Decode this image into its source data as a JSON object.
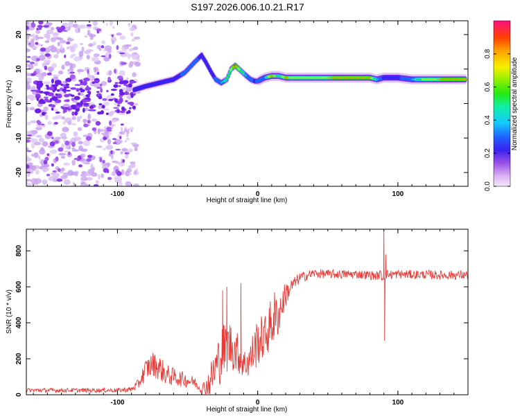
{
  "title": "S197.2026.006.10.21.R17",
  "chart_data": [
    {
      "type": "heatmap",
      "xlabel": "Height of straight line (km)",
      "ylabel": "Frequency (Hz)",
      "xlim": [
        -165,
        150
      ],
      "ylim": [
        -24,
        24
      ],
      "x_ticks": [
        -100,
        0,
        100
      ],
      "y_ticks": [
        -20,
        -10,
        0,
        10,
        20
      ],
      "colorbar": {
        "label": "Normalized spectral amplitude",
        "range": [
          0.0,
          1.0
        ],
        "ticks": [
          0.0,
          0.2,
          0.4,
          0.6,
          0.8
        ],
        "tick_labels": [
          "0.0",
          "0.2",
          "0.4",
          "0.6",
          "0.8"
        ]
      },
      "ridge": {
        "x": [
          -88,
          -80,
          -70,
          -60,
          -52,
          -45,
          -40,
          -37,
          -33,
          -30,
          -26,
          -22,
          -19,
          -16,
          -12,
          -8,
          -5,
          -2,
          0,
          5,
          10,
          15,
          20,
          30,
          45,
          60,
          80,
          85,
          90,
          100,
          110,
          120,
          140,
          148
        ],
        "freq": [
          4,
          5,
          6,
          7,
          9,
          12,
          14,
          12,
          9,
          7,
          6,
          7,
          10,
          11,
          9.5,
          8,
          7,
          6.5,
          6.5,
          7.5,
          8,
          8,
          7.5,
          7.5,
          7.5,
          7.5,
          7.5,
          7,
          7.5,
          7.5,
          7,
          7,
          7,
          7
        ],
        "amplitude": [
          0.35,
          0.4,
          0.35,
          0.4,
          0.5,
          0.55,
          0.4,
          0.45,
          0.4,
          0.5,
          0.55,
          0.65,
          0.75,
          0.95,
          0.7,
          0.55,
          0.5,
          0.45,
          0.5,
          0.55,
          0.9,
          0.6,
          0.85,
          0.75,
          0.8,
          0.85,
          0.9,
          0.6,
          0.45,
          0.45,
          0.55,
          0.8,
          0.85,
          0.85
        ]
      }
    },
    {
      "type": "line",
      "xlabel": "Height of straight line (km)",
      "ylabel": "SNR (10 * v/v)",
      "xlim": [
        -165,
        150
      ],
      "ylim": [
        0,
        920
      ],
      "x_ticks": [
        -100,
        0,
        100
      ],
      "y_ticks": [
        0,
        200,
        400,
        600,
        800
      ],
      "color": "#e83a36",
      "series": {
        "x": [
          -165,
          -120,
          -100,
          -90,
          -85,
          -80,
          -75,
          -70,
          -65,
          -60,
          -55,
          -50,
          -45,
          -40,
          -35,
          -30,
          -25,
          -20,
          -15,
          -10,
          -5,
          0,
          5,
          10,
          15,
          20,
          25,
          30,
          40,
          50,
          60,
          70,
          80,
          85,
          88,
          89,
          90,
          92,
          95,
          100,
          110,
          120,
          130,
          140,
          150
        ],
        "y": [
          25,
          25,
          25,
          30,
          60,
          140,
          170,
          150,
          110,
          100,
          90,
          80,
          70,
          30,
          60,
          150,
          240,
          280,
          240,
          170,
          200,
          300,
          320,
          400,
          450,
          560,
          610,
          650,
          675,
          670,
          670,
          670,
          665,
          660,
          670,
          640,
          660,
          670,
          668,
          670,
          668,
          668,
          665,
          665,
          665
        ],
        "noise": [
          12,
          12,
          12,
          15,
          30,
          60,
          70,
          70,
          60,
          50,
          45,
          40,
          30,
          25,
          80,
          130,
          160,
          140,
          120,
          80,
          110,
          140,
          120,
          150,
          120,
          70,
          40,
          30,
          25,
          25,
          25,
          25,
          25,
          25,
          25,
          25,
          25,
          25,
          25,
          25,
          25,
          25,
          25,
          25,
          25
        ],
        "spikes": [
          {
            "x": 90,
            "y": 920
          },
          {
            "x": 90.5,
            "y": 300
          },
          {
            "x": 91.5,
            "y": 780
          },
          {
            "x": -25,
            "y": 580
          },
          {
            "x": -22,
            "y": 600
          },
          {
            "x": -12,
            "y": 620
          },
          {
            "x": 12,
            "y": 570
          }
        ]
      }
    }
  ]
}
